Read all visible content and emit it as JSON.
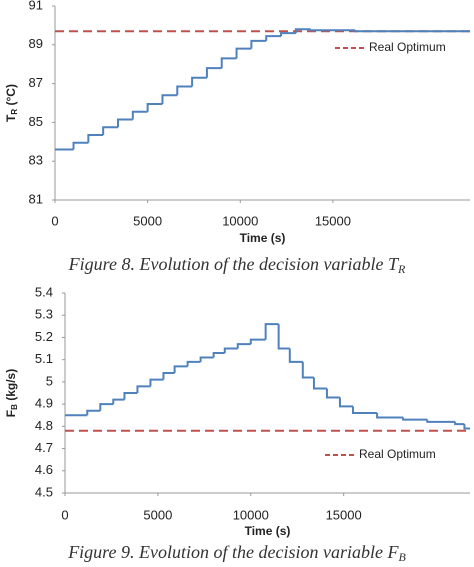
{
  "chart_data": [
    {
      "type": "line",
      "step": true,
      "caption": [
        "Figure 8.   Evolution of the decision variable T",
        "R"
      ],
      "xlabel": "Time (s)",
      "ylabel": [
        "T",
        "R",
        " (°C)"
      ],
      "x": [
        0,
        1000,
        1800,
        2600,
        3400,
        4200,
        5000,
        5800,
        6600,
        7400,
        8200,
        9000,
        9800,
        10600,
        11400,
        12200,
        13000,
        13800,
        14600,
        15400,
        16200,
        17000
      ],
      "series": [
        {
          "name": "TR",
          "color": "#4f81bd",
          "values": [
            83.6,
            83.95,
            84.35,
            84.75,
            85.15,
            85.55,
            85.95,
            86.4,
            86.85,
            87.3,
            87.8,
            88.3,
            88.8,
            89.2,
            89.45,
            89.6,
            89.8,
            89.75,
            89.75,
            89.75,
            89.7,
            89.7
          ]
        }
      ],
      "reference": {
        "name": "Real Optimum",
        "value": 89.7,
        "color": "#c0504d"
      },
      "xlim": [
        0,
        22400
      ],
      "xticks": [
        0,
        5000,
        10000,
        15000
      ],
      "ylim": [
        81,
        91
      ],
      "yticks": [
        81,
        83,
        85,
        87,
        89,
        91
      ]
    },
    {
      "type": "line",
      "step": true,
      "caption": [
        "Figure 9.   Evolution of the decision variable F",
        "B"
      ],
      "xlabel": "Time (s)",
      "ylabel": [
        "F",
        "B",
        " (kg/s)"
      ],
      "x": [
        0,
        1200,
        1900,
        2600,
        3200,
        3900,
        4600,
        5300,
        5900,
        6600,
        7300,
        8000,
        8600,
        9300,
        10000,
        10800,
        11500,
        12100,
        12800,
        13400,
        14100,
        14800,
        15500,
        16800,
        18200,
        19500,
        21000,
        21500
      ],
      "series": [
        {
          "name": "FB",
          "color": "#4f81bd",
          "values": [
            4.85,
            4.87,
            4.9,
            4.92,
            4.95,
            4.98,
            5.01,
            5.04,
            5.07,
            5.09,
            5.11,
            5.13,
            5.15,
            5.17,
            5.19,
            5.26,
            5.15,
            5.09,
            5.02,
            4.97,
            4.93,
            4.89,
            4.86,
            4.84,
            4.83,
            4.82,
            4.81,
            4.79
          ]
        }
      ],
      "reference": {
        "name": "Real Optimum",
        "value": 4.78,
        "color": "#c0504d"
      },
      "xlim": [
        0,
        21800
      ],
      "xticks": [
        0,
        5000,
        10000,
        15000
      ],
      "ylim": [
        4.5,
        5.4
      ],
      "yticks": [
        4.5,
        4.6,
        4.7,
        4.8,
        4.9,
        5,
        5.1,
        5.2,
        5.3,
        5.4
      ]
    }
  ]
}
